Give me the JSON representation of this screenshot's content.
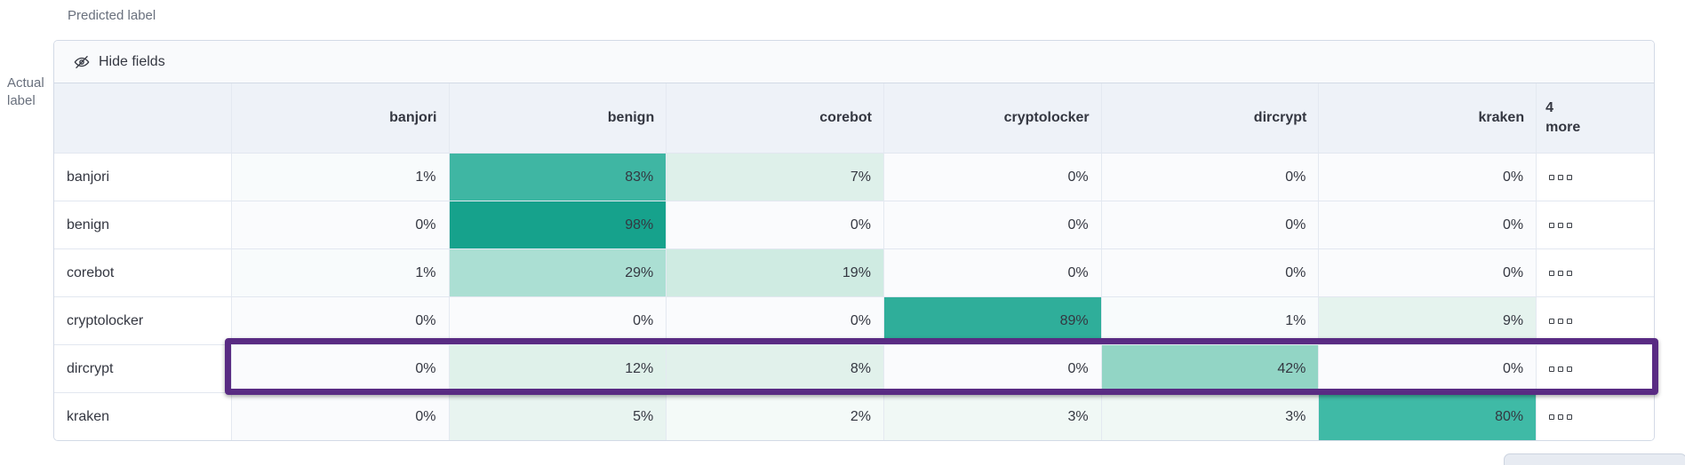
{
  "axes": {
    "predicted_label": "Predicted label",
    "actual_label": "Actual label"
  },
  "toolbar": {
    "hide_fields_label": "Hide fields",
    "hide_fields_icon": "eye-closed-icon"
  },
  "grid": {
    "columns": [
      "banjori",
      "benign",
      "corebot",
      "cryptolocker",
      "dircrypt",
      "kraken"
    ],
    "more_column_label": "4 more",
    "row_actions_icon": "boxes-horizontal-icon",
    "rows": [
      {
        "label": "banjori",
        "cells": [
          {
            "value": "1%",
            "bg": "#f8fbfc"
          },
          {
            "value": "83%",
            "bg": "#3fb6a3"
          },
          {
            "value": "7%",
            "bg": "#def0ea"
          },
          {
            "value": "0%",
            "bg": "#fafbfd"
          },
          {
            "value": "0%",
            "bg": "#fafbfd"
          },
          {
            "value": "0%",
            "bg": "#fafbfd"
          }
        ]
      },
      {
        "label": "benign",
        "cells": [
          {
            "value": "0%",
            "bg": "#fafbfd"
          },
          {
            "value": "98%",
            "bg": "#16a28c"
          },
          {
            "value": "0%",
            "bg": "#fafbfd"
          },
          {
            "value": "0%",
            "bg": "#fafbfd"
          },
          {
            "value": "0%",
            "bg": "#fafbfd"
          },
          {
            "value": "0%",
            "bg": "#fafbfd"
          }
        ]
      },
      {
        "label": "corebot",
        "cells": [
          {
            "value": "1%",
            "bg": "#f8fbfc"
          },
          {
            "value": "29%",
            "bg": "#abdfd3"
          },
          {
            "value": "19%",
            "bg": "#cfebe2"
          },
          {
            "value": "0%",
            "bg": "#fafbfd"
          },
          {
            "value": "0%",
            "bg": "#fafbfd"
          },
          {
            "value": "0%",
            "bg": "#fafbfd"
          }
        ]
      },
      {
        "label": "cryptolocker",
        "cells": [
          {
            "value": "0%",
            "bg": "#fafbfd"
          },
          {
            "value": "0%",
            "bg": "#fafbfd"
          },
          {
            "value": "0%",
            "bg": "#fafbfd"
          },
          {
            "value": "89%",
            "bg": "#2fae9a"
          },
          {
            "value": "1%",
            "bg": "#f8fbfc"
          },
          {
            "value": "9%",
            "bg": "#e5f3ee"
          }
        ]
      },
      {
        "label": "dircrypt",
        "cells": [
          {
            "value": "0%",
            "bg": "#fafbfd"
          },
          {
            "value": "12%",
            "bg": "#dff1ea"
          },
          {
            "value": "8%",
            "bg": "#e1f1eb"
          },
          {
            "value": "0%",
            "bg": "#fafbfd"
          },
          {
            "value": "42%",
            "bg": "#92d5c5"
          },
          {
            "value": "0%",
            "bg": "#fafbfd"
          }
        ]
      },
      {
        "label": "kraken",
        "cells": [
          {
            "value": "0%",
            "bg": "#fafbfd"
          },
          {
            "value": "5%",
            "bg": "#e8f4f0"
          },
          {
            "value": "2%",
            "bg": "#f4faf8"
          },
          {
            "value": "3%",
            "bg": "#f0f8f5"
          },
          {
            "value": "3%",
            "bg": "#f0f8f5"
          },
          {
            "value": "80%",
            "bg": "#3fbaa6"
          }
        ]
      }
    ]
  },
  "highlight": {
    "row_label": "dircrypt",
    "border_color": "#592b83"
  },
  "colors": {
    "heat_max": "#16a28c",
    "heat_min": "#fafbfd",
    "header_bg": "#eef2f8",
    "panel_border": "#d3dae6"
  },
  "chart_data": {
    "type": "heatmap",
    "x_axis_label": "Predicted label",
    "y_axis_label": "Actual label",
    "x_categories": [
      "banjori",
      "benign",
      "corebot",
      "cryptolocker",
      "dircrypt",
      "kraken"
    ],
    "y_categories": [
      "banjori",
      "benign",
      "corebot",
      "cryptolocker",
      "dircrypt",
      "kraken"
    ],
    "values_percent": [
      [
        1,
        83,
        7,
        0,
        0,
        0
      ],
      [
        0,
        98,
        0,
        0,
        0,
        0
      ],
      [
        1,
        29,
        19,
        0,
        0,
        0
      ],
      [
        0,
        0,
        0,
        89,
        1,
        9
      ],
      [
        0,
        12,
        8,
        0,
        42,
        0
      ],
      [
        0,
        5,
        2,
        3,
        3,
        80
      ]
    ],
    "hidden_columns_label": "4 more",
    "highlighted_row": "dircrypt",
    "legend": "none",
    "grid": "on"
  }
}
